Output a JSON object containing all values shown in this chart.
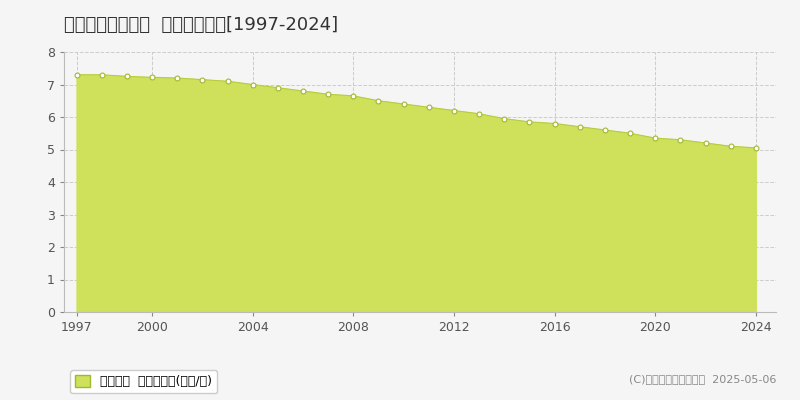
{
  "title": "藤津郡太良町多良  基準地価推移[1997-2024]",
  "years": [
    1997,
    1998,
    1999,
    2000,
    2001,
    2002,
    2003,
    2004,
    2005,
    2006,
    2007,
    2008,
    2009,
    2010,
    2011,
    2012,
    2013,
    2014,
    2015,
    2016,
    2017,
    2018,
    2019,
    2020,
    2021,
    2022,
    2023,
    2024
  ],
  "values": [
    7.3,
    7.3,
    7.25,
    7.22,
    7.2,
    7.15,
    7.1,
    7.0,
    6.9,
    6.8,
    6.7,
    6.65,
    6.5,
    6.4,
    6.3,
    6.2,
    6.1,
    5.95,
    5.85,
    5.8,
    5.7,
    5.6,
    5.5,
    5.35,
    5.3,
    5.2,
    5.1,
    5.05
  ],
  "fill_color": "#cfe05a",
  "line_color": "#b8cc40",
  "marker_facecolor": "#ffffff",
  "marker_edgecolor": "#a0b830",
  "bg_color": "#f5f5f5",
  "plot_bg_color": "#f5f5f5",
  "grid_color": "#cccccc",
  "ylim": [
    0,
    8
  ],
  "yticks": [
    0,
    1,
    2,
    3,
    4,
    5,
    6,
    7,
    8
  ],
  "xticks": [
    1997,
    2000,
    2004,
    2008,
    2012,
    2016,
    2020,
    2024
  ],
  "legend_label": "基準地価  平均坪単価(万円/坪)",
  "copyright": "(C)土地価格ドットコム  2025-05-06",
  "title_fontsize": 13,
  "axis_fontsize": 9,
  "legend_fontsize": 9,
  "copyright_fontsize": 8
}
